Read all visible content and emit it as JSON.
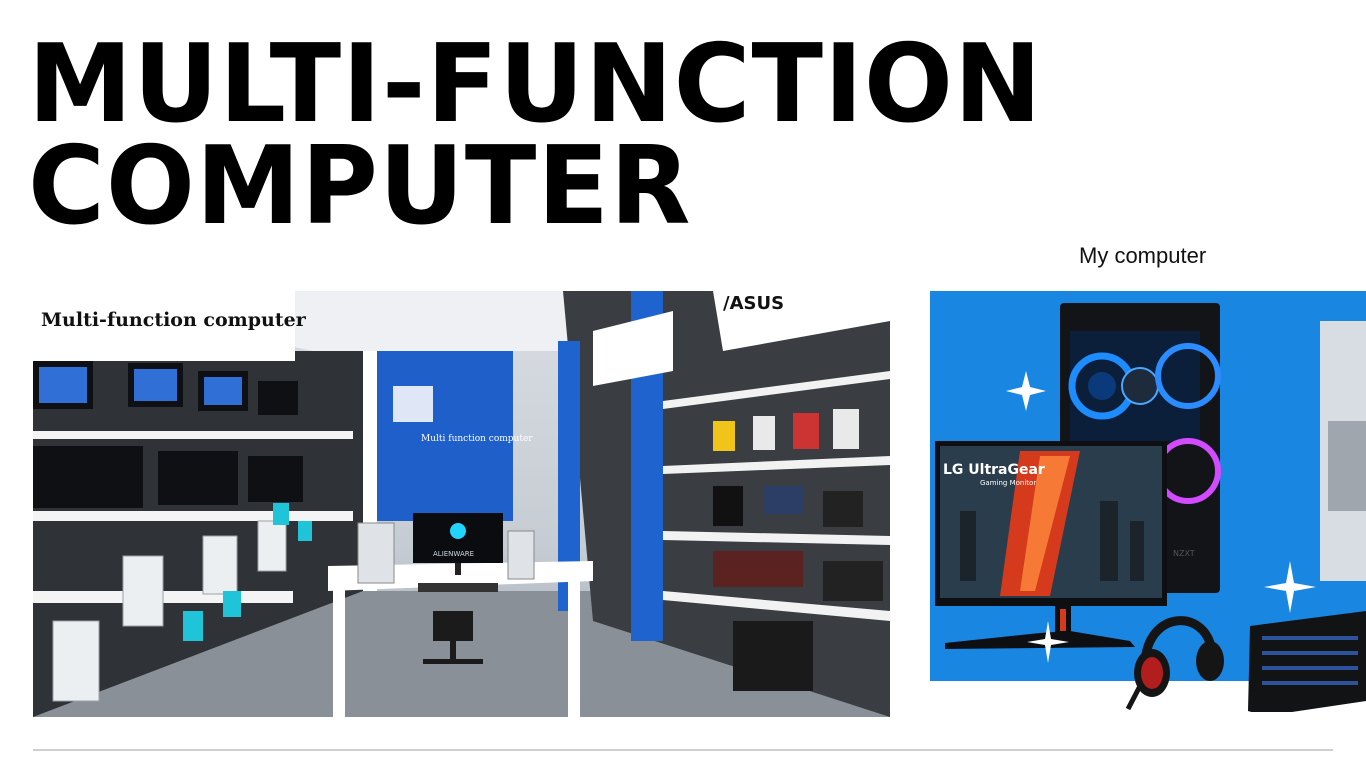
{
  "slide": {
    "title_line1": "MULTI-FUNCTION",
    "title_line2": "COMPUTER",
    "caption": "My computer"
  },
  "store_photo": {
    "overlay_label": "Multi-function computer",
    "wall_sign": "Multi function computer",
    "brand_sign": "/ASUS",
    "monitor_brand": "ALIENWARE"
  },
  "setup_photo": {
    "monitor_label": "LG UltraGear",
    "monitor_sublabel": "Gaming Monitor",
    "case_brand": "NZXT"
  }
}
